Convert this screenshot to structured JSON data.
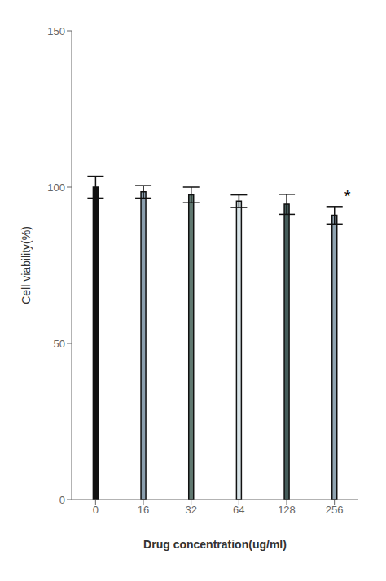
{
  "chart_data": {
    "type": "bar",
    "categories": [
      "0",
      "16",
      "32",
      "64",
      "128",
      "256"
    ],
    "values": [
      100.0,
      98.5,
      97.5,
      95.5,
      94.5,
      91.0
    ],
    "errors": [
      3.5,
      2.0,
      2.5,
      2.0,
      3.2,
      2.8
    ],
    "colors": [
      "#111111",
      "#8A9EAD",
      "#607870",
      "#D8E4E8",
      "#455C5A",
      "#8FA3B0"
    ],
    "xlabel": "Drug concentration(ug/ml)",
    "ylabel": "Cell viability(%)",
    "ylim": [
      0,
      150
    ],
    "yticks": [
      0,
      50,
      100,
      150
    ],
    "grid": false,
    "annotations": [
      {
        "text": "*",
        "category": "256"
      }
    ]
  }
}
